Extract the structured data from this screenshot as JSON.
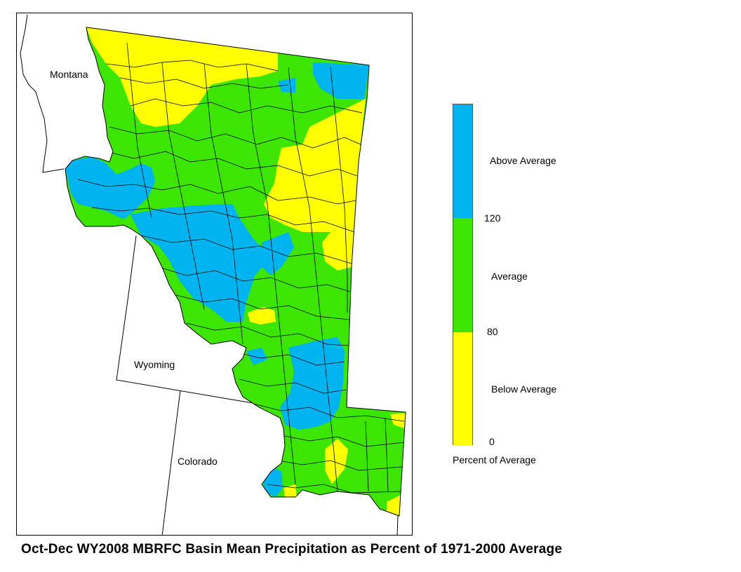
{
  "title": "Oct-Dec WY2008 MBRFC Basin Mean Precipitation as Percent of 1971-2000 Average",
  "states": {
    "montana": "Montana",
    "wyoming": "Wyoming",
    "colorado": "Colorado"
  },
  "legend": {
    "categories": [
      {
        "label": "Above Average",
        "color": "#00b4f0",
        "range": [
          120,
          null
        ]
      },
      {
        "label": "Average",
        "color": "#3ce600",
        "range": [
          80,
          120
        ]
      },
      {
        "label": "Below Average",
        "color": "#ffff00",
        "range": [
          0,
          80
        ]
      }
    ],
    "break_labels": {
      "upper": "120",
      "lower": "80",
      "zero": "0"
    },
    "caption": "Percent of Average"
  },
  "colors": {
    "above": "#00b4f0",
    "average": "#3ce600",
    "below": "#ffff00",
    "boundary": "#000000",
    "background": "#ffffff"
  }
}
